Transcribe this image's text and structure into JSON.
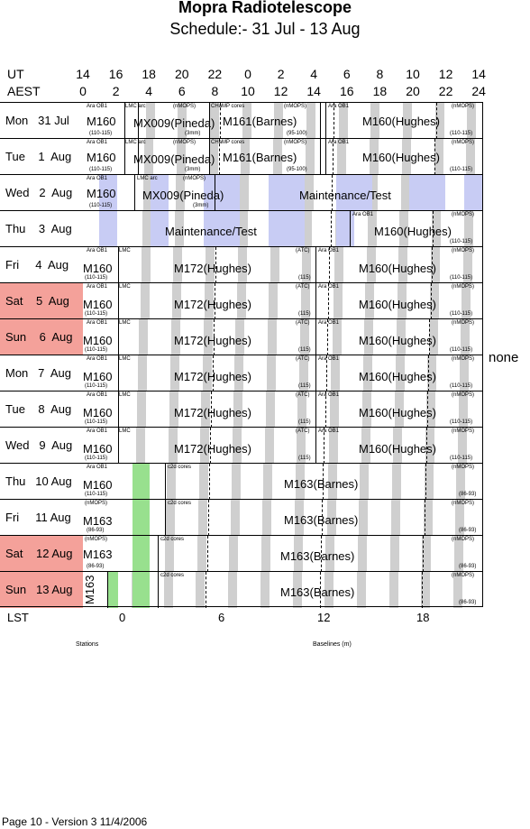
{
  "title": "Mopra Radiotelescope",
  "subtitle": "Schedule:- 31 Jul - 13 Aug",
  "axis": {
    "ut_label": "UT",
    "aest_label": "AEST",
    "ut_ticks": [
      "14",
      "16",
      "18",
      "20",
      "22",
      "0",
      "2",
      "4",
      "6",
      "8",
      "10",
      "12",
      "14"
    ],
    "aest_ticks": [
      "0",
      "2",
      "4",
      "6",
      "8",
      "10",
      "12",
      "14",
      "16",
      "18",
      "20",
      "22",
      "24"
    ],
    "lst_label": "LST",
    "lst_ticks": [
      "0",
      "6",
      "12",
      "18"
    ]
  },
  "days": [
    {
      "label": "Mon   31 Jul",
      "weekend": false
    },
    {
      "label": "Tue    1  Aug",
      "weekend": false
    },
    {
      "label": "Wed   2  Aug",
      "weekend": false
    },
    {
      "label": "Thu    3  Aug",
      "weekend": false
    },
    {
      "label": "Fri     4  Aug",
      "weekend": false
    },
    {
      "label": "Sat    5  Aug",
      "weekend": true
    },
    {
      "label": "Sun    6  Aug",
      "weekend": true
    },
    {
      "label": "Mon   7  Aug",
      "weekend": false
    },
    {
      "label": "Tue    8  Aug",
      "weekend": false
    },
    {
      "label": "Wed   9  Aug",
      "weekend": false
    },
    {
      "label": "Thu   10 Aug",
      "weekend": false
    },
    {
      "label": "Fri     11 Aug",
      "weekend": false
    },
    {
      "label": "Sat    12 Aug",
      "weekend": true
    },
    {
      "label": "Sun   13 Aug",
      "weekend": true
    }
  ],
  "labels": {
    "m160": "M160",
    "m160h": "M160(Hughes)",
    "m161b": "M161(Barnes)",
    "mx009": "MX009(Pineda)",
    "m172h": "M172(Hughes)",
    "m163": "M163",
    "m163b": "M163(Barnes)",
    "maint": "Maintenance/Test",
    "araob1": "Ara OB1",
    "lmc": "LMC",
    "lmcarc": "LMC arc",
    "champ": "CHaMP cores",
    "nmops": "(nMOPS)",
    "atc": "(ATC)",
    "c2d": "c2d cores",
    "r110": "(110-115)",
    "r3mm": "(3mm)",
    "r95": "(95-100)",
    "r115": "(115)",
    "r86": "(86-93)"
  },
  "none_label": "none",
  "footer": {
    "stations": "Stations",
    "baselines": "Baselines (m)",
    "page": "Page 10 - Version 3  11/4/2006"
  },
  "colors": {
    "band": "#cfcfcf",
    "maintenance": "#c8ccf4",
    "weekend": "#f4a19a",
    "green": "#98e08e"
  }
}
